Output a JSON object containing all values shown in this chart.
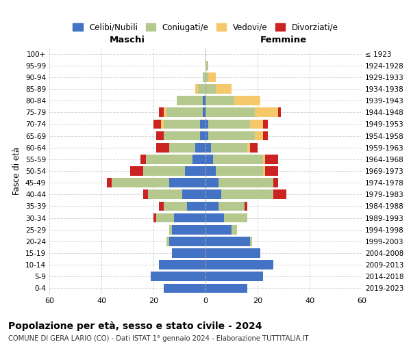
{
  "age_groups": [
    "0-4",
    "5-9",
    "10-14",
    "15-19",
    "20-24",
    "25-29",
    "30-34",
    "35-39",
    "40-44",
    "45-49",
    "50-54",
    "55-59",
    "60-64",
    "65-69",
    "70-74",
    "75-79",
    "80-84",
    "85-89",
    "90-94",
    "95-99",
    "100+"
  ],
  "birth_years": [
    "2019-2023",
    "2014-2018",
    "2009-2013",
    "2004-2008",
    "1999-2003",
    "1994-1998",
    "1989-1993",
    "1984-1988",
    "1979-1983",
    "1974-1978",
    "1969-1973",
    "1964-1968",
    "1959-1963",
    "1954-1958",
    "1949-1953",
    "1944-1948",
    "1939-1943",
    "1934-1938",
    "1929-1933",
    "1924-1928",
    "≤ 1923"
  ],
  "colors": {
    "celibi": "#4472c4",
    "coniugati": "#b5c98e",
    "vedovi": "#f5c96a",
    "divorziati": "#cc2222"
  },
  "maschi": {
    "celibi": [
      16,
      21,
      18,
      13,
      14,
      13,
      12,
      7,
      9,
      14,
      8,
      5,
      4,
      2,
      2,
      1,
      1,
      0,
      0,
      0,
      0
    ],
    "coniugati": [
      0,
      0,
      0,
      0,
      1,
      1,
      7,
      9,
      13,
      22,
      16,
      18,
      10,
      14,
      14,
      14,
      10,
      3,
      1,
      0,
      0
    ],
    "vedovi": [
      0,
      0,
      0,
      0,
      0,
      0,
      0,
      0,
      0,
      0,
      0,
      0,
      0,
      0,
      1,
      1,
      0,
      1,
      0,
      0,
      0
    ],
    "divorziati": [
      0,
      0,
      0,
      0,
      0,
      0,
      1,
      2,
      2,
      2,
      5,
      2,
      5,
      3,
      3,
      2,
      0,
      0,
      0,
      0,
      0
    ]
  },
  "femmine": {
    "nubili": [
      16,
      22,
      26,
      21,
      17,
      10,
      7,
      5,
      6,
      5,
      4,
      3,
      2,
      1,
      1,
      0,
      0,
      0,
      0,
      0,
      0
    ],
    "coniugate": [
      0,
      0,
      0,
      0,
      1,
      2,
      9,
      10,
      20,
      21,
      18,
      19,
      14,
      18,
      16,
      19,
      11,
      4,
      1,
      1,
      0
    ],
    "vedove": [
      0,
      0,
      0,
      0,
      0,
      0,
      0,
      0,
      0,
      0,
      1,
      1,
      1,
      3,
      5,
      9,
      10,
      6,
      3,
      0,
      0
    ],
    "divorziate": [
      0,
      0,
      0,
      0,
      0,
      0,
      0,
      1,
      5,
      2,
      5,
      5,
      3,
      2,
      2,
      1,
      0,
      0,
      0,
      0,
      0
    ]
  },
  "xlim": 60,
  "title": "Popolazione per età, sesso e stato civile - 2024",
  "subtitle": "COMUNE DI GERA LARIO (CO) - Dati ISTAT 1° gennaio 2024 - Elaborazione TUTTITALIA.IT",
  "xlabel_left": "Maschi",
  "xlabel_right": "Femmine",
  "ylabel_left": "Fasce di età",
  "legend_labels": [
    "Celibi/Nubili",
    "Coniugati/e",
    "Vedovi/e",
    "Divorziati/e"
  ],
  "background_color": "#ffffff",
  "grid_color": "#cccccc"
}
